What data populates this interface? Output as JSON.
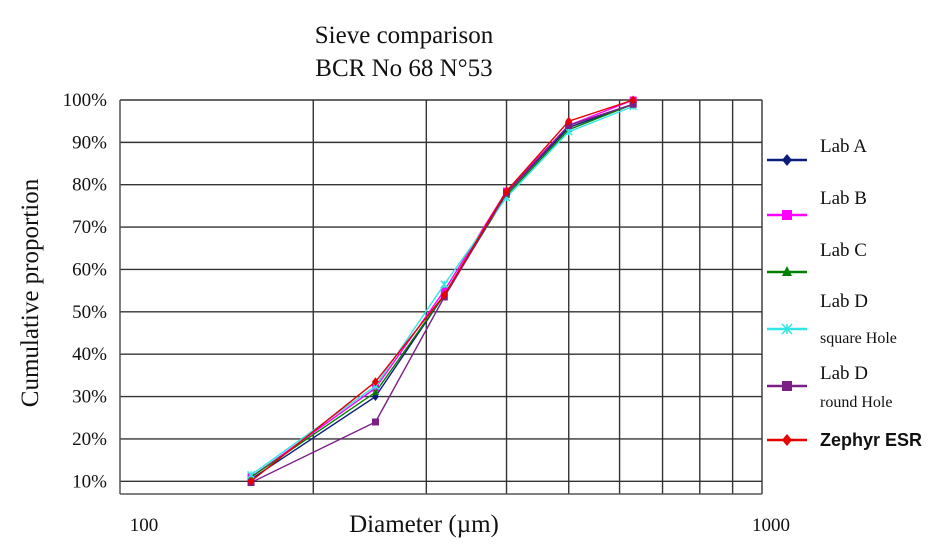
{
  "chart_data": {
    "type": "line",
    "title": "Sieve comparison",
    "subtitle": "BCR No 68 N°53",
    "xlabel": "Diameter (µm)",
    "ylabel": "Cumulative proportion",
    "x_scale": "log",
    "xlim": [
      100,
      1000
    ],
    "ylim": [
      0.07,
      1.0
    ],
    "x_tick_labels": [
      "100",
      "1000"
    ],
    "y_tick_labels": [
      "10%",
      "20%",
      "30%",
      "40%",
      "50%",
      "60%",
      "70%",
      "80%",
      "90%",
      "100%"
    ],
    "grid": true,
    "legend_position": "right",
    "x": [
      160,
      250,
      320,
      400,
      500,
      630
    ],
    "series": [
      {
        "name": "Lab A",
        "name_sub": "",
        "color": "#0a1f7a",
        "marker": "diamond",
        "values": [
          0.105,
          0.3,
          0.54,
          0.78,
          0.935,
          0.99
        ]
      },
      {
        "name": "Lab B",
        "name_sub": "",
        "color": "#ff00ff",
        "marker": "square",
        "values": [
          0.11,
          0.32,
          0.55,
          0.785,
          0.94,
          1.0
        ]
      },
      {
        "name": "Lab C",
        "name_sub": "",
        "color": "#008000",
        "marker": "triangle",
        "values": [
          0.11,
          0.31,
          0.54,
          0.775,
          0.93,
          0.99
        ]
      },
      {
        "name": "Lab D",
        "name_sub": "square Hole",
        "color": "#33e5e5",
        "marker": "x",
        "values": [
          0.115,
          0.325,
          0.565,
          0.77,
          0.925,
          0.985
        ]
      },
      {
        "name": "Lab D",
        "name_sub": "round Hole",
        "color": "#7b1f86",
        "marker": "square",
        "values": [
          0.097,
          0.24,
          0.535,
          0.78,
          0.94,
          0.99
        ]
      },
      {
        "name": "Zephyr ESR",
        "name_sub": "",
        "color": "#e60000",
        "marker": "diamond",
        "values": [
          0.1,
          0.335,
          0.54,
          0.785,
          0.95,
          1.0
        ]
      }
    ]
  }
}
